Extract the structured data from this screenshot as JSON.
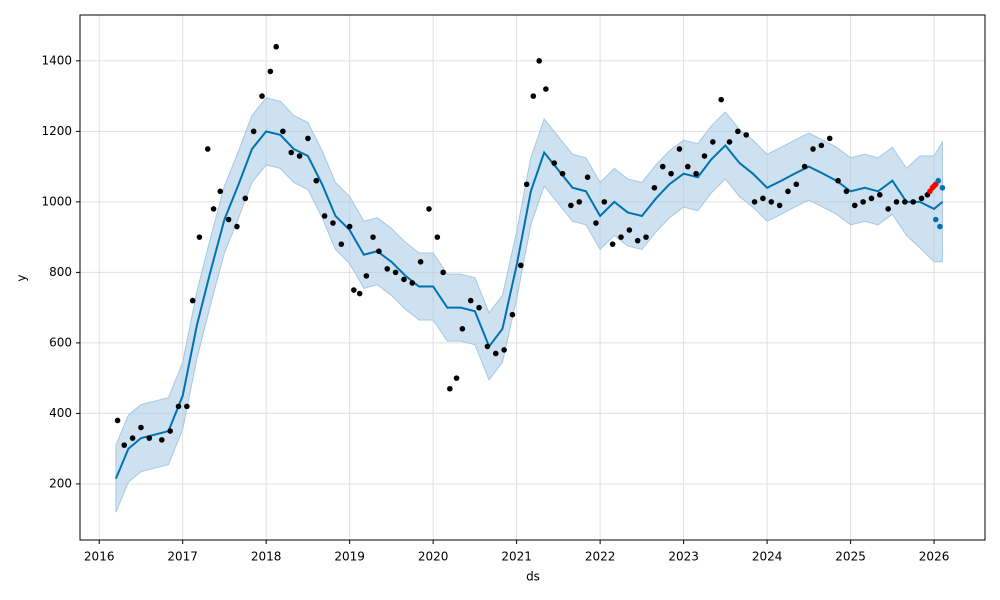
{
  "chart_data": {
    "type": "forecast",
    "x_label": "ds",
    "y_label": "y",
    "xlim": [
      2015.77,
      2026.61
    ],
    "ylim": [
      41,
      1530
    ],
    "xticks": [
      2016,
      2017,
      2018,
      2019,
      2020,
      2021,
      2022,
      2023,
      2024,
      2025,
      2026
    ],
    "yticks": [
      200,
      400,
      600,
      800,
      1000,
      1200,
      1400
    ],
    "grid": true,
    "series": [
      {
        "kind": "line",
        "color": "#0072b2",
        "band_color": "#a6c8e3",
        "x": [
          2016.2,
          2016.35,
          2016.5,
          2016.67,
          2016.83,
          2017.0,
          2017.17,
          2017.33,
          2017.5,
          2017.67,
          2017.83,
          2018.0,
          2018.17,
          2018.33,
          2018.5,
          2018.67,
          2018.83,
          2019.0,
          2019.17,
          2019.33,
          2019.5,
          2019.67,
          2019.83,
          2020.0,
          2020.17,
          2020.33,
          2020.5,
          2020.67,
          2020.83,
          2021.0,
          2021.17,
          2021.33,
          2021.5,
          2021.67,
          2021.83,
          2022.0,
          2022.17,
          2022.33,
          2022.5,
          2022.67,
          2022.83,
          2023.0,
          2023.17,
          2023.33,
          2023.5,
          2023.67,
          2023.83,
          2024.0,
          2024.17,
          2024.33,
          2024.5,
          2024.67,
          2024.83,
          2025.0,
          2025.17,
          2025.33,
          2025.5,
          2025.67,
          2025.83,
          2026.0,
          2026.1
        ],
        "values": [
          215,
          300,
          330,
          340,
          350,
          450,
          650,
          800,
          950,
          1050,
          1150,
          1200,
          1190,
          1150,
          1130,
          1050,
          960,
          920,
          850,
          860,
          830,
          790,
          760,
          760,
          700,
          700,
          690,
          590,
          640,
          820,
          1030,
          1140,
          1090,
          1040,
          1030,
          960,
          1000,
          970,
          960,
          1010,
          1050,
          1080,
          1070,
          1120,
          1160,
          1110,
          1080,
          1040,
          1060,
          1080,
          1100,
          1080,
          1060,
          1030,
          1040,
          1030,
          1060,
          1000,
          1000,
          980,
          1000
        ],
        "lower": [
          120,
          205,
          235,
          245,
          255,
          355,
          555,
          705,
          855,
          955,
          1055,
          1105,
          1095,
          1055,
          1035,
          955,
          865,
          825,
          755,
          765,
          735,
          695,
          665,
          665,
          605,
          605,
          595,
          495,
          545,
          725,
          935,
          1045,
          995,
          945,
          935,
          865,
          905,
          875,
          865,
          915,
          955,
          985,
          975,
          1025,
          1065,
          1015,
          985,
          945,
          965,
          985,
          1005,
          985,
          965,
          935,
          945,
          935,
          965,
          905,
          870,
          830,
          830
        ],
        "upper": [
          310,
          395,
          425,
          435,
          445,
          545,
          745,
          895,
          1045,
          1145,
          1245,
          1295,
          1285,
          1245,
          1225,
          1145,
          1055,
          1015,
          945,
          955,
          925,
          885,
          855,
          855,
          795,
          795,
          785,
          685,
          735,
          915,
          1125,
          1235,
          1185,
          1135,
          1125,
          1055,
          1095,
          1065,
          1055,
          1105,
          1145,
          1175,
          1165,
          1215,
          1255,
          1205,
          1175,
          1135,
          1155,
          1175,
          1195,
          1175,
          1155,
          1125,
          1135,
          1125,
          1155,
          1095,
          1130,
          1130,
          1170
        ]
      },
      {
        "kind": "scatter",
        "color": "#000000",
        "x": [
          2016.22,
          2016.3,
          2016.4,
          2016.5,
          2016.6,
          2016.75,
          2016.85,
          2016.95,
          2017.05,
          2017.12,
          2017.2,
          2017.3,
          2017.37,
          2017.45,
          2017.55,
          2017.65,
          2017.75,
          2017.85,
          2017.95,
          2018.05,
          2018.12,
          2018.2,
          2018.3,
          2018.4,
          2018.5,
          2018.6,
          2018.7,
          2018.8,
          2018.9,
          2019.0,
          2019.05,
          2019.12,
          2019.2,
          2019.28,
          2019.35,
          2019.45,
          2019.55,
          2019.65,
          2019.75,
          2019.85,
          2019.95,
          2020.05,
          2020.12,
          2020.2,
          2020.28,
          2020.35,
          2020.45,
          2020.55,
          2020.65,
          2020.75,
          2020.85,
          2020.95,
          2021.05,
          2021.12,
          2021.2,
          2021.27,
          2021.35,
          2021.45,
          2021.55,
          2021.65,
          2021.75,
          2021.85,
          2021.95,
          2022.05,
          2022.15,
          2022.25,
          2022.35,
          2022.45,
          2022.55,
          2022.65,
          2022.75,
          2022.85,
          2022.95,
          2023.05,
          2023.15,
          2023.25,
          2023.35,
          2023.45,
          2023.55,
          2023.65,
          2023.75,
          2023.85,
          2023.95,
          2024.05,
          2024.15,
          2024.25,
          2024.35,
          2024.45,
          2024.55,
          2024.65,
          2024.75,
          2024.85,
          2024.95,
          2025.05,
          2025.15,
          2025.25,
          2025.35,
          2025.45,
          2025.55,
          2025.65,
          2025.75,
          2025.85,
          2025.92
        ],
        "values": [
          380,
          310,
          330,
          360,
          330,
          325,
          350,
          420,
          420,
          720,
          900,
          1150,
          980,
          1030,
          950,
          930,
          1010,
          1200,
          1300,
          1370,
          1440,
          1200,
          1140,
          1130,
          1180,
          1060,
          960,
          940,
          880,
          930,
          750,
          740,
          790,
          900,
          860,
          810,
          800,
          780,
          770,
          830,
          980,
          900,
          800,
          470,
          500,
          640,
          720,
          700,
          590,
          570,
          580,
          680,
          820,
          1050,
          1300,
          1400,
          1320,
          1110,
          1080,
          990,
          1000,
          1070,
          940,
          1000,
          880,
          900,
          920,
          890,
          900,
          1040,
          1100,
          1080,
          1150,
          1100,
          1080,
          1130,
          1170,
          1290,
          1170,
          1200,
          1190,
          1000,
          1010,
          1000,
          990,
          1030,
          1050,
          1100,
          1150,
          1160,
          1180,
          1060,
          1030,
          990,
          1000,
          1010,
          1020,
          980,
          1000,
          1000,
          1000,
          1010,
          1020
        ]
      },
      {
        "kind": "scatter",
        "color": "#ff0000",
        "x": [
          2025.95,
          2025.98,
          2026.0,
          2026.02
        ],
        "values": [
          1030,
          1040,
          1045,
          1050
        ]
      },
      {
        "kind": "scatter",
        "color": "#0072b2",
        "x": [
          2026.02,
          2026.05,
          2026.07,
          2026.1
        ],
        "values": [
          950,
          1060,
          930,
          1040
        ]
      }
    ]
  }
}
